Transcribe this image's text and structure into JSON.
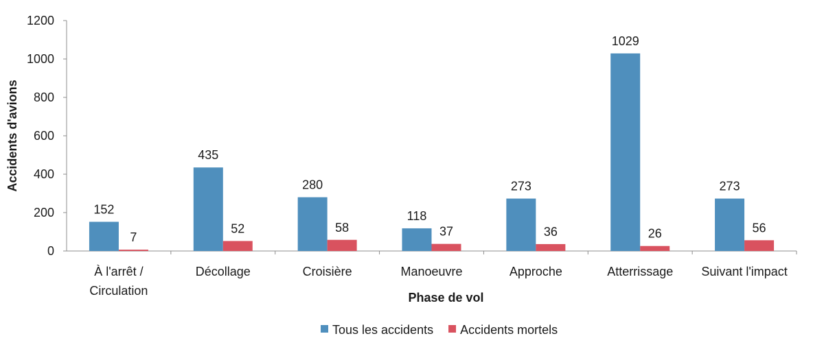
{
  "chart_data": {
    "type": "bar",
    "categories": [
      [
        "À l'arrêt /",
        "Circulation"
      ],
      [
        "Décollage"
      ],
      [
        "Croisière"
      ],
      [
        "Manoeuvre"
      ],
      [
        "Approche"
      ],
      [
        "Atterrissage"
      ],
      [
        "Suivant l'impact"
      ]
    ],
    "series": [
      {
        "name": "Tous les accidents",
        "color": "#4f8fbd",
        "values": [
          152,
          435,
          280,
          118,
          273,
          1029,
          273
        ]
      },
      {
        "name": "Accidents mortels",
        "color": "#d9525f",
        "values": [
          7,
          52,
          58,
          37,
          36,
          26,
          56
        ]
      }
    ],
    "xlabel": "Phase de vol",
    "ylabel": "Accidents d'avions",
    "ylim": [
      0,
      1200
    ],
    "yticks": [
      0,
      200,
      400,
      600,
      800,
      1000,
      1200
    ],
    "grid": false,
    "legend_position": "bottom"
  }
}
